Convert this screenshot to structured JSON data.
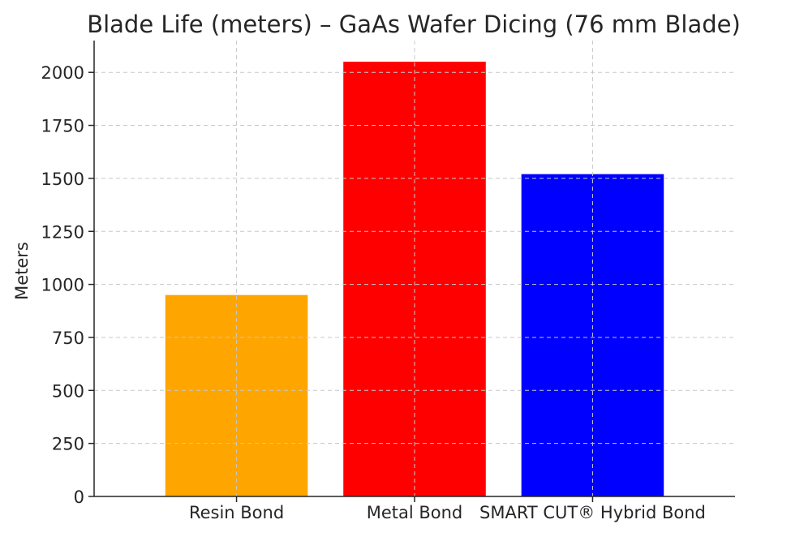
{
  "chart_data": {
    "type": "bar",
    "title": "Blade Life (meters) – GaAs Wafer Dicing (76 mm Blade)",
    "xlabel": "",
    "ylabel": "Meters",
    "categories": [
      "Resin Bond",
      "Metal Bond",
      "SMART CUT® Hybrid Bond"
    ],
    "values": [
      950,
      2050,
      1520
    ],
    "colors": [
      "#ffa500",
      "#ff0000",
      "#0000ff"
    ],
    "ylim": [
      0,
      2150
    ],
    "yticks": [
      0,
      250,
      500,
      750,
      1000,
      1250,
      1500,
      1750,
      2000
    ],
    "grid": true,
    "grid_color": "#c8c8c8",
    "legend": "none"
  }
}
